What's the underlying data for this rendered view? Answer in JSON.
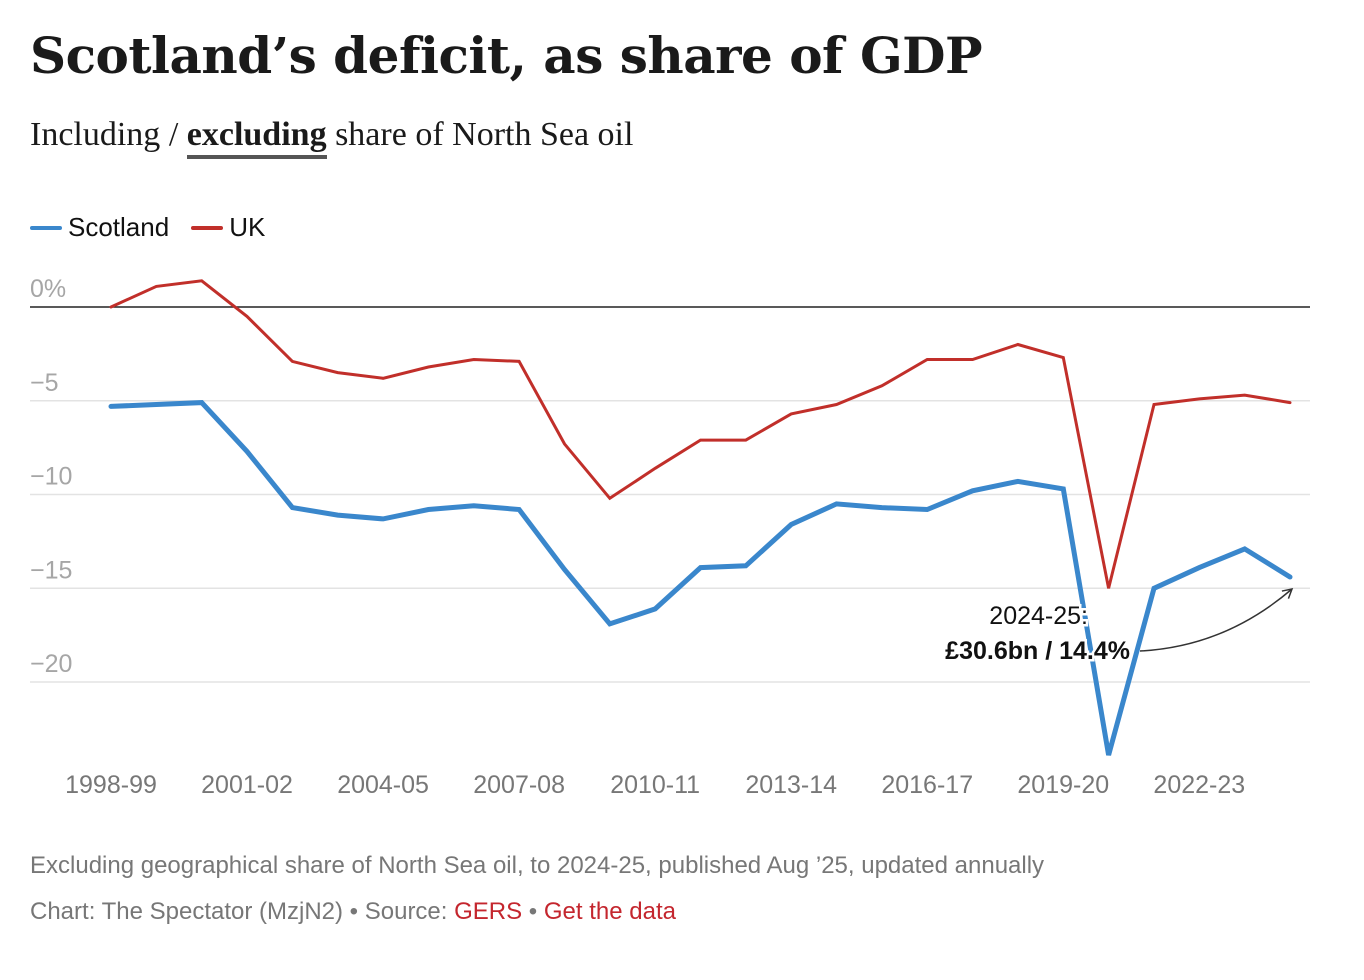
{
  "header": {
    "title": "Scotland’s deficit, as share of GDP",
    "subtitle_option_1": "Including",
    "subtitle_sep": " / ",
    "subtitle_option_2": "excluding",
    "subtitle_rest": " share of North Sea oil"
  },
  "colors": {
    "scotland": "#3a87cc",
    "uk": "#c12f2a"
  },
  "chart_data": {
    "type": "line",
    "title": "Scotland’s deficit, as share of GDP",
    "xlabel": "",
    "ylabel": "",
    "ylim": [
      -24,
      1.5
    ],
    "y_ticks": [
      0,
      -5,
      -10,
      -15,
      -20
    ],
    "y_tick_labels": [
      "0%",
      "−5",
      "−10",
      "−15",
      "−20"
    ],
    "x_tick_labels": [
      "1998-99",
      "2001-02",
      "2004-05",
      "2007-08",
      "2010-11",
      "2013-14",
      "2016-17",
      "2019-20",
      "2022-23"
    ],
    "legend_position": "top-left",
    "x": [
      "1998-99",
      "1999-00",
      "2000-01",
      "2001-02",
      "2002-03",
      "2003-04",
      "2004-05",
      "2005-06",
      "2006-07",
      "2007-08",
      "2008-09",
      "2009-10",
      "2010-11",
      "2011-12",
      "2012-13",
      "2013-14",
      "2014-15",
      "2015-16",
      "2016-17",
      "2017-18",
      "2018-19",
      "2019-20",
      "2020-21",
      "2021-22",
      "2022-23",
      "2023-24",
      "2024-25"
    ],
    "series": [
      {
        "name": "Scotland",
        "values": [
          -5.3,
          -5.2,
          -5.1,
          -7.7,
          -10.7,
          -11.1,
          -11.3,
          -10.8,
          -10.6,
          -10.8,
          -14.0,
          -16.9,
          -16.1,
          -13.9,
          -13.8,
          -11.6,
          -10.5,
          -10.7,
          -10.8,
          -9.8,
          -9.3,
          -9.7,
          -23.9,
          -15.0,
          -13.9,
          -12.9,
          -14.4
        ]
      },
      {
        "name": "UK",
        "values": [
          0.0,
          1.1,
          1.4,
          -0.5,
          -2.9,
          -3.5,
          -3.8,
          -3.2,
          -2.8,
          -2.9,
          -7.3,
          -10.2,
          -8.6,
          -7.1,
          -7.1,
          -5.7,
          -5.2,
          -4.2,
          -2.8,
          -2.8,
          -2.0,
          -2.7,
          -15.0,
          -5.2,
          -4.9,
          -4.7,
          -5.1
        ]
      }
    ],
    "annotation": {
      "line1": "2024-25:",
      "line2": "£30.6bn / 14.4%"
    }
  },
  "footer": {
    "note": "Excluding geographical share of North Sea oil, to 2024-25, published Aug ’25, updated annually",
    "credit": "Chart: The Spectator (MzjN2) • Source: ",
    "source_link": "GERS",
    "sep": " • ",
    "data_link": "Get the data"
  }
}
